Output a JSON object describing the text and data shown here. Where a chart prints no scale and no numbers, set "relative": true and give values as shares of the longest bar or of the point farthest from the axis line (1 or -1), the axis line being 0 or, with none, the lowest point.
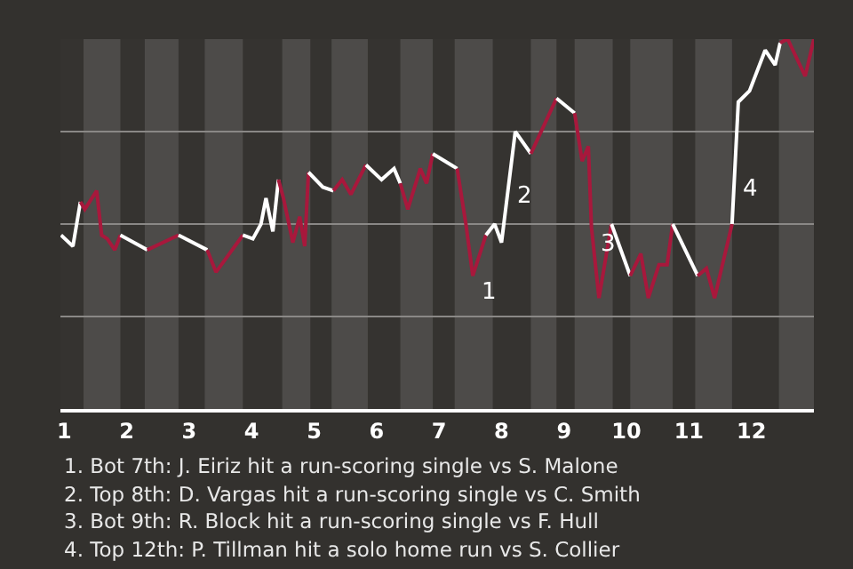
{
  "chart_data": {
    "type": "line",
    "relative": true,
    "xlim": [
      0.94,
      13.0
    ],
    "xticks": [
      1,
      2,
      3,
      4,
      5,
      6,
      7,
      8,
      9,
      10,
      11,
      12
    ],
    "tick_labels": "x",
    "grid": "y",
    "marker": "none",
    "line_style": "solid",
    "series": [
      {
        "color": "#ffffff",
        "x": [
          0.95,
          1.14,
          1.26
        ],
        "values": [
          0.47,
          0.44,
          0.56
        ]
      },
      {
        "color": "#a8183c",
        "x": [
          1.26,
          1.33,
          1.52,
          1.6,
          1.69,
          1.81,
          1.9
        ],
        "values": [
          0.56,
          0.54,
          0.59,
          0.47,
          0.46,
          0.43,
          0.47
        ]
      },
      {
        "color": "#ffffff",
        "x": [
          1.9,
          2.33
        ],
        "values": [
          0.47,
          0.43
        ]
      },
      {
        "color": "#a8183c",
        "x": [
          2.33,
          2.83
        ],
        "values": [
          0.43,
          0.47
        ]
      },
      {
        "color": "#ffffff",
        "x": [
          2.83,
          3.29
        ],
        "values": [
          0.47,
          0.43
        ]
      },
      {
        "color": "#a8183c",
        "x": [
          3.29,
          3.43,
          3.86
        ],
        "values": [
          0.43,
          0.37,
          0.47
        ]
      },
      {
        "color": "#ffffff",
        "x": [
          3.86,
          4.02,
          4.15,
          4.23,
          4.34,
          4.43
        ],
        "values": [
          0.47,
          0.46,
          0.5,
          0.57,
          0.48,
          0.62
        ]
      },
      {
        "color": "#a8183c",
        "x": [
          4.43,
          4.51,
          4.66,
          4.77,
          4.85,
          4.91
        ],
        "values": [
          0.62,
          0.57,
          0.45,
          0.52,
          0.44,
          0.64
        ]
      },
      {
        "color": "#ffffff",
        "x": [
          4.91,
          5.14,
          5.31
        ],
        "values": [
          0.64,
          0.6,
          0.59
        ]
      },
      {
        "color": "#a8183c",
        "x": [
          5.31,
          5.45,
          5.59,
          5.83
        ],
        "values": [
          0.59,
          0.62,
          0.58,
          0.66
        ]
      },
      {
        "color": "#ffffff",
        "x": [
          5.83,
          6.08,
          6.28,
          6.38
        ],
        "values": [
          0.66,
          0.62,
          0.65,
          0.61
        ]
      },
      {
        "color": "#a8183c",
        "x": [
          6.38,
          6.5,
          6.7,
          6.8,
          6.9
        ],
        "values": [
          0.61,
          0.54,
          0.65,
          0.61,
          0.69
        ]
      },
      {
        "color": "#ffffff",
        "x": [
          6.9,
          7.29
        ],
        "values": [
          0.69,
          0.65
        ]
      },
      {
        "color": "#a8183c",
        "x": [
          7.29,
          7.43,
          7.54,
          7.75
        ],
        "values": [
          0.65,
          0.5,
          0.36,
          0.47
        ]
      },
      {
        "color": "#ffffff",
        "x": [
          7.75,
          7.89,
          8.0,
          8.22,
          8.47
        ],
        "values": [
          0.47,
          0.5,
          0.45,
          0.75,
          0.69
        ]
      },
      {
        "color": "#a8183c",
        "x": [
          8.47,
          8.88
        ],
        "values": [
          0.69,
          0.84
        ]
      },
      {
        "color": "#ffffff",
        "x": [
          8.88,
          9.17
        ],
        "values": [
          0.84,
          0.8
        ]
      },
      {
        "color": "#a8183c",
        "x": [
          9.17,
          9.29,
          9.39,
          9.44,
          9.56,
          9.76
        ],
        "values": [
          0.8,
          0.67,
          0.71,
          0.49,
          0.3,
          0.5
        ]
      },
      {
        "color": "#ffffff",
        "x": [
          9.76,
          10.06
        ],
        "values": [
          0.5,
          0.36
        ]
      },
      {
        "color": "#a8183c",
        "x": [
          10.06,
          10.23,
          10.35,
          10.52,
          10.65,
          10.74
        ],
        "values": [
          0.36,
          0.42,
          0.3,
          0.39,
          0.39,
          0.5
        ]
      },
      {
        "color": "#ffffff",
        "x": [
          10.74,
          11.14
        ],
        "values": [
          0.5,
          0.36
        ]
      },
      {
        "color": "#a8183c",
        "x": [
          11.14,
          11.28,
          11.41,
          11.69
        ],
        "values": [
          0.36,
          0.38,
          0.3,
          0.5
        ]
      },
      {
        "color": "#ffffff",
        "x": [
          11.69,
          11.79,
          11.97,
          12.22,
          12.38,
          12.46
        ],
        "values": [
          0.5,
          0.83,
          0.86,
          0.97,
          0.93,
          0.99
        ]
      },
      {
        "color": "#a8183c",
        "x": [
          12.46,
          12.58,
          12.86,
          13.0
        ],
        "values": [
          0.99,
          1.0,
          0.9,
          1.0
        ]
      }
    ],
    "bands": [
      {
        "axis": "x",
        "from": 1.31,
        "to": 1.9,
        "color": "#4d4b49"
      },
      {
        "axis": "x",
        "from": 2.29,
        "to": 2.83,
        "color": "#4d4b49"
      },
      {
        "axis": "x",
        "from": 3.25,
        "to": 3.86,
        "color": "#4d4b49"
      },
      {
        "axis": "x",
        "from": 4.49,
        "to": 4.94,
        "color": "#4d4b49"
      },
      {
        "axis": "x",
        "from": 5.28,
        "to": 5.86,
        "color": "#4d4b49"
      },
      {
        "axis": "x",
        "from": 6.38,
        "to": 6.9,
        "color": "#4d4b49"
      },
      {
        "axis": "x",
        "from": 7.25,
        "to": 7.86,
        "color": "#4d4b49"
      },
      {
        "axis": "x",
        "from": 8.47,
        "to": 8.88,
        "color": "#4d4b49"
      },
      {
        "axis": "x",
        "from": 9.17,
        "to": 9.78,
        "color": "#4d4b49"
      },
      {
        "axis": "x",
        "from": 10.06,
        "to": 10.74,
        "color": "#4d4b49"
      },
      {
        "axis": "x",
        "from": 11.1,
        "to": 11.69,
        "color": "#4d4b49"
      },
      {
        "axis": "x",
        "from": 12.44,
        "to": 13.0,
        "color": "#4d4b49"
      }
    ],
    "annotations": [
      {
        "text": "1",
        "x": 7.54,
        "y": 0.36
      },
      {
        "text": "2",
        "x": 8.12,
        "y": 0.62
      },
      {
        "text": "3",
        "x": 9.44,
        "y": 0.49
      },
      {
        "text": "4",
        "x": 11.73,
        "y": 0.64
      },
      "1. Bot 7th: J. Eiriz hit a run-scoring single vs S. Malone",
      "2. Top 8th: D. Vargas hit a run-scoring single vs C. Smith",
      "3. Bot 9th: R. Block hit a run-scoring single vs F. Hull",
      "4. Top 12th: P. Tillman hit a solo home run vs S. Collier"
    ]
  }
}
